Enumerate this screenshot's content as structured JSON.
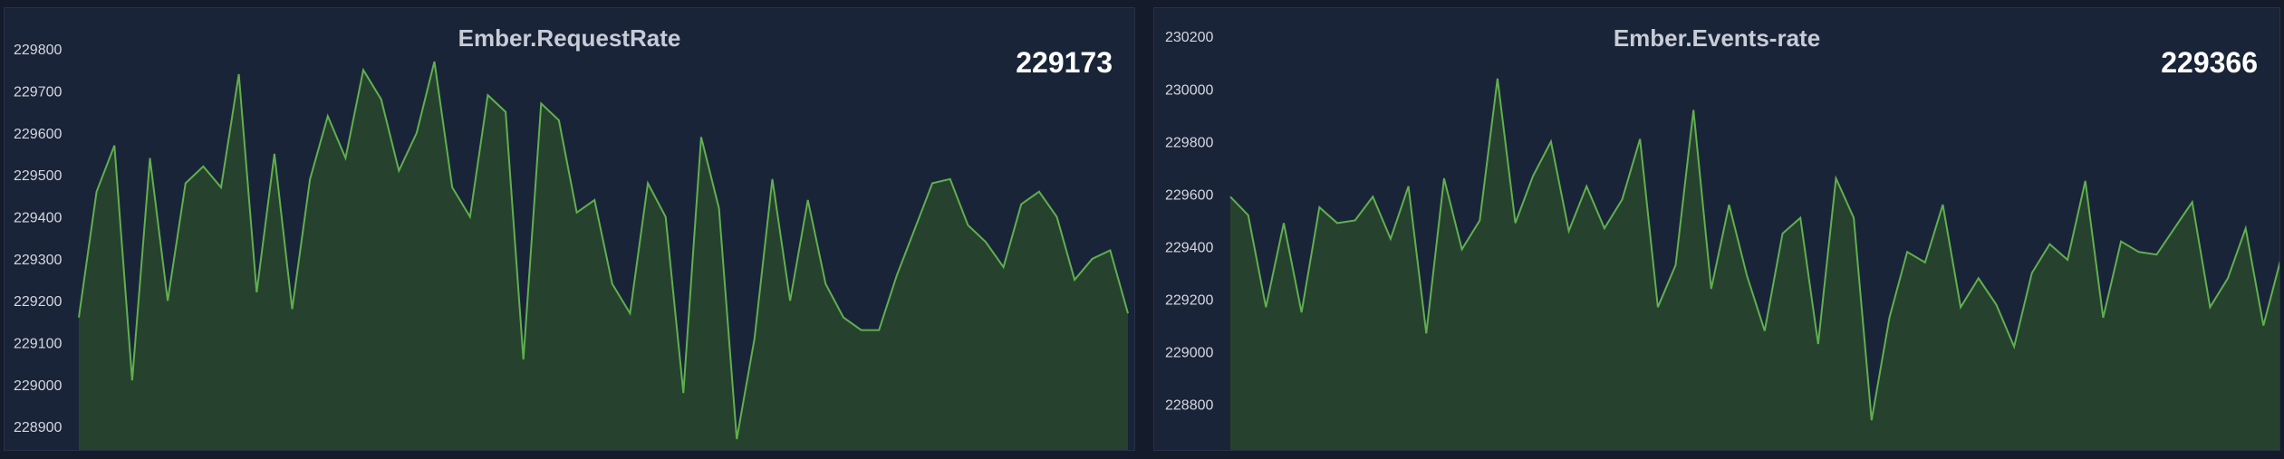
{
  "colors": {
    "background": "#141b2b",
    "panel": "#1a2438",
    "line": "#5fb04e",
    "fill": "#27412f"
  },
  "panels": [
    {
      "title": "Ember.RequestRate",
      "value": "229173"
    },
    {
      "title": "Ember.Events-rate",
      "value": "229366"
    }
  ],
  "chart_data": [
    {
      "type": "area",
      "title": "Ember.RequestRate",
      "ylim": [
        228840,
        229880
      ],
      "yticks": [
        "228900",
        "229000",
        "229100",
        "229200",
        "229300",
        "229400",
        "229500",
        "229600",
        "229700",
        "229800"
      ],
      "grid": false,
      "legend": "none",
      "values": [
        229160,
        229460,
        229570,
        229010,
        229540,
        229200,
        229480,
        229520,
        229470,
        229740,
        229220,
        229550,
        229180,
        229490,
        229640,
        229540,
        229750,
        229680,
        229510,
        229600,
        229770,
        229470,
        229400,
        229690,
        229650,
        229060,
        229670,
        229630,
        229410,
        229440,
        229240,
        229170,
        229480,
        229400,
        228980,
        229590,
        229420,
        228870,
        229110,
        229490,
        229200,
        229440,
        229240,
        229160,
        229130,
        229130,
        229260,
        229370,
        229480,
        229490,
        229380,
        229340,
        229280,
        229430,
        229460,
        229400,
        229250,
        229300,
        229320,
        229170
      ]
    },
    {
      "type": "area",
      "title": "Ember.Events-rate",
      "ylim": [
        228620,
        230280
      ],
      "yticks": [
        "228800",
        "229000",
        "229200",
        "229400",
        "229600",
        "229800",
        "230000",
        "230200"
      ],
      "grid": false,
      "legend": "none",
      "values": [
        229590,
        229520,
        229170,
        229490,
        229150,
        229550,
        229490,
        229500,
        229590,
        229430,
        229630,
        229070,
        229660,
        229390,
        229500,
        230040,
        229490,
        229670,
        229800,
        229460,
        229630,
        229470,
        229580,
        229810,
        229170,
        229330,
        229920,
        229240,
        229560,
        229290,
        229080,
        229450,
        229510,
        229030,
        229660,
        229510,
        228740,
        229130,
        229380,
        229340,
        229560,
        229170,
        229280,
        229180,
        229020,
        229300,
        229410,
        229350,
        229650,
        229130,
        229420,
        229380,
        229370,
        229470,
        229570,
        229170,
        229280,
        229470,
        229100,
        229360
      ]
    }
  ]
}
